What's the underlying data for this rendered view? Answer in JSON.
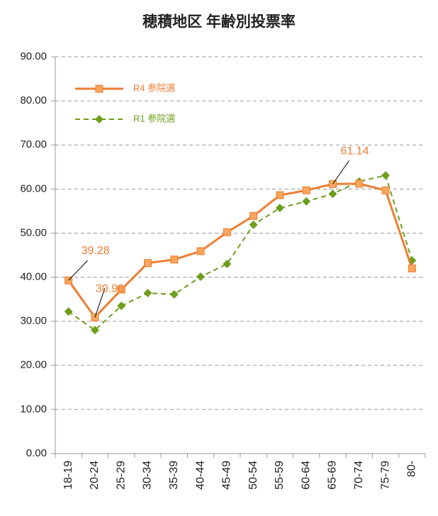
{
  "chart_data": {
    "type": "line",
    "title": "穂積地区 年齢別投票率",
    "categories": [
      "18-19",
      "20-24",
      "25-29",
      "30-34",
      "35-39",
      "40-44",
      "45-49",
      "50-54",
      "55-59",
      "60-64",
      "65-69",
      "70-74",
      "75-79",
      "80-"
    ],
    "series": [
      {
        "name": "R4 参院選",
        "color": "#ed7d31",
        "marker": "square",
        "dash": false,
        "values": [
          39.28,
          30.9,
          37.2,
          43.2,
          44.0,
          45.9,
          50.2,
          53.9,
          58.6,
          59.7,
          61.14,
          61.2,
          59.7,
          42.0
        ],
        "value_labels": [
          "39.28",
          "30.90",
          null,
          null,
          null,
          null,
          null,
          null,
          null,
          null,
          "61.14",
          null,
          null,
          null
        ]
      },
      {
        "name": "R1 参院選",
        "color": "#6f9e1e",
        "marker": "diamond",
        "dash": true,
        "values": [
          32.2,
          28.0,
          33.5,
          36.4,
          36.1,
          40.1,
          43.0,
          51.9,
          55.7,
          57.2,
          58.9,
          61.7,
          63.1,
          43.8
        ]
      }
    ],
    "ylim": [
      0,
      90
    ],
    "yticks": [
      {
        "value": 0,
        "label": "0.00"
      },
      {
        "value": 10,
        "label": "10.00"
      },
      {
        "value": 20,
        "label": "20.00"
      },
      {
        "value": 30,
        "label": "30.00"
      },
      {
        "value": 40,
        "label": "40.00"
      },
      {
        "value": 50,
        "label": "50.00"
      },
      {
        "value": 60,
        "label": "60.00"
      },
      {
        "value": 70,
        "label": "70.00"
      },
      {
        "value": 80,
        "label": "80.00"
      },
      {
        "value": 90,
        "label": "90.00"
      }
    ],
    "grid": true,
    "legend": "upper left"
  }
}
